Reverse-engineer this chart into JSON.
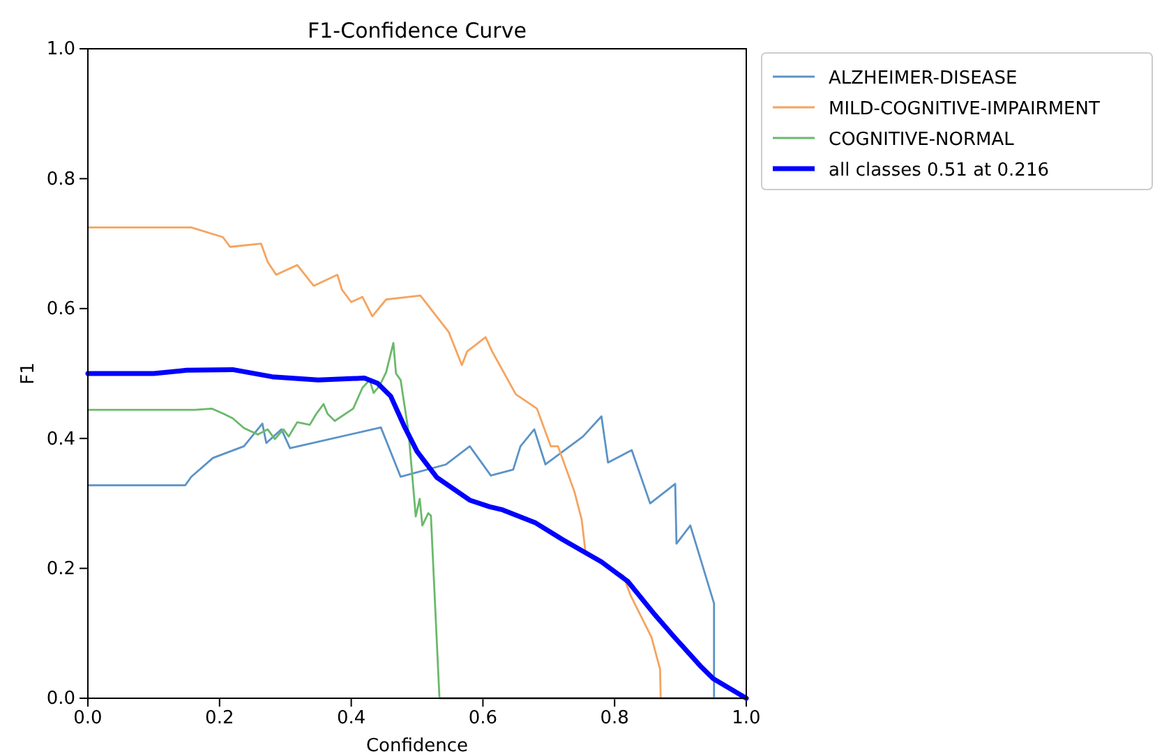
{
  "chart_data": {
    "type": "line",
    "title": "F1-Confidence Curve",
    "xlabel": "Confidence",
    "ylabel": "F1",
    "xlim": [
      0,
      1
    ],
    "ylim": [
      0,
      1
    ],
    "xticks": [
      {
        "value": 0,
        "label": "0.0"
      },
      {
        "value": 0.2,
        "label": "0.2"
      },
      {
        "value": 0.4,
        "label": "0.4"
      },
      {
        "value": 0.6,
        "label": "0.6"
      },
      {
        "value": 0.8,
        "label": "0.8"
      },
      {
        "value": 1,
        "label": "1.0"
      }
    ],
    "yticks": [
      {
        "value": 0,
        "label": "0.0"
      },
      {
        "value": 0.2,
        "label": "0.2"
      },
      {
        "value": 0.4,
        "label": "0.4"
      },
      {
        "value": 0.6,
        "label": "0.6"
      },
      {
        "value": 0.8,
        "label": "0.8"
      },
      {
        "value": 1,
        "label": "1.0"
      }
    ],
    "grid": false,
    "legend": "top right",
    "marker": "none",
    "line_style": "solid",
    "series": [
      {
        "name": "ALZHEIMER-DISEASE",
        "color": "#5b93c7",
        "x": [
          0,
          0.148,
          0.157,
          0.19,
          0.237,
          0.265,
          0.271,
          0.294,
          0.307,
          0.445,
          0.475,
          0.544,
          0.58,
          0.612,
          0.646,
          0.657,
          0.678,
          0.695,
          0.752,
          0.78,
          0.79,
          0.826,
          0.854,
          0.892,
          0.894,
          0.915,
          0.951,
          0.951
        ],
        "values": [
          0.328,
          0.328,
          0.341,
          0.37,
          0.388,
          0.423,
          0.393,
          0.414,
          0.385,
          0.417,
          0.341,
          0.36,
          0.388,
          0.343,
          0.352,
          0.388,
          0.414,
          0.36,
          0.403,
          0.434,
          0.363,
          0.382,
          0.3,
          0.33,
          0.238,
          0.266,
          0.146,
          0
        ]
      },
      {
        "name": "MILD-COGNITIVE-IMPAIRMENT",
        "color": "#f5a45f",
        "x": [
          0,
          0.157,
          0.205,
          0.216,
          0.263,
          0.273,
          0.286,
          0.318,
          0.343,
          0.379,
          0.386,
          0.4,
          0.417,
          0.432,
          0.453,
          0.505,
          0.548,
          0.568,
          0.576,
          0.604,
          0.614,
          0.65,
          0.682,
          0.703,
          0.714,
          0.739,
          0.75,
          0.756,
          0.813,
          0.824,
          0.856,
          0.869,
          0.87
        ],
        "values": [
          0.725,
          0.725,
          0.71,
          0.695,
          0.7,
          0.672,
          0.652,
          0.667,
          0.635,
          0.652,
          0.629,
          0.61,
          0.618,
          0.588,
          0.614,
          0.62,
          0.564,
          0.513,
          0.534,
          0.556,
          0.534,
          0.468,
          0.446,
          0.388,
          0.388,
          0.318,
          0.275,
          0.223,
          0.189,
          0.159,
          0.094,
          0.045,
          0
        ]
      },
      {
        "name": "COGNITIVE-NORMAL",
        "color": "#6ab96a",
        "x": [
          0,
          0.163,
          0.188,
          0.206,
          0.22,
          0.237,
          0.258,
          0.273,
          0.284,
          0.297,
          0.305,
          0.318,
          0.337,
          0.347,
          0.358,
          0.364,
          0.375,
          0.403,
          0.417,
          0.428,
          0.434,
          0.443,
          0.453,
          0.464,
          0.468,
          0.475,
          0.487,
          0.498,
          0.504,
          0.508,
          0.517,
          0.521,
          0.534,
          1
        ],
        "values": [
          0.444,
          0.444,
          0.446,
          0.438,
          0.431,
          0.416,
          0.406,
          0.414,
          0.399,
          0.414,
          0.403,
          0.425,
          0.421,
          0.438,
          0.453,
          0.438,
          0.427,
          0.446,
          0.478,
          0.49,
          0.47,
          0.481,
          0.502,
          0.547,
          0.5,
          0.49,
          0.41,
          0.28,
          0.307,
          0.266,
          0.285,
          0.281,
          0,
          0
        ]
      },
      {
        "name": "all classes 0.51 at 0.216",
        "color": "#0000ff",
        "x": [
          0,
          0.1,
          0.15,
          0.22,
          0.28,
          0.35,
          0.42,
          0.44,
          0.46,
          0.48,
          0.5,
          0.53,
          0.58,
          0.61,
          0.63,
          0.68,
          0.72,
          0.78,
          0.82,
          0.86,
          0.89,
          0.93,
          0.95,
          1
        ],
        "values": [
          0.5,
          0.5,
          0.505,
          0.506,
          0.495,
          0.49,
          0.493,
          0.485,
          0.465,
          0.42,
          0.38,
          0.34,
          0.305,
          0.295,
          0.29,
          0.27,
          0.245,
          0.21,
          0.18,
          0.13,
          0.095,
          0.05,
          0.03,
          0
        ]
      }
    ]
  }
}
